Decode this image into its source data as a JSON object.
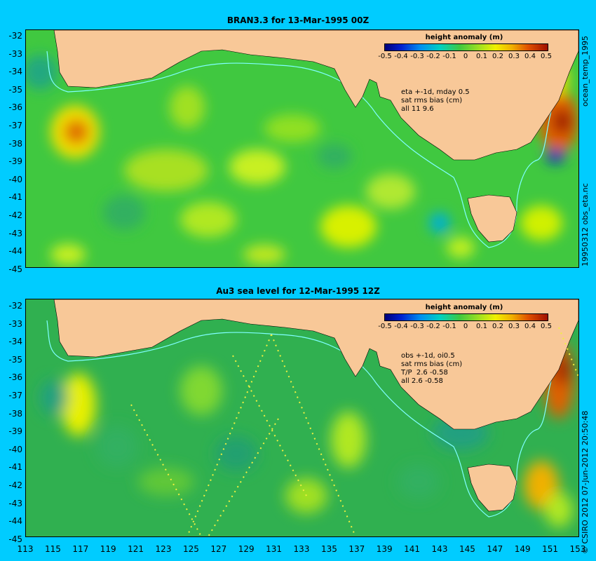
{
  "panels": [
    {
      "title": "BRAN3.3 for 13-Mar-1995 00Z",
      "colorbar_title": "height anomaly (m)",
      "notes": [
        "eta +-1d, mday 0.5",
        "sat rms bias (cm)",
        "all 11 9.6"
      ],
      "side_label": "ocean_temp_1995",
      "side_label_lower": "19950312 obs_eta.nc"
    },
    {
      "title": "Au3 sea level  for 12-Mar-1995 12Z",
      "colorbar_title": "height anomaly (m)",
      "notes": [
        "obs +-1d, oi0.5",
        "sat rms bias (cm)",
        "T/P  2.6 -0.58",
        "all 2.6 -0.58"
      ],
      "side_label": "© CSIRO 2012  07-Jun-2012 20:50:48"
    }
  ],
  "colorbar_ticks": [
    "-0.5",
    "-0.4",
    "-0.3",
    "-0.2",
    "-0.1",
    "0",
    "0.1",
    "0.2",
    "0.3",
    "0.4",
    "0.5"
  ],
  "colorbar_range": [
    -0.5,
    0.5
  ],
  "lat_labels": [
    "-32",
    "-33",
    "-34",
    "-35",
    "-36",
    "-37",
    "-38",
    "-39",
    "-40",
    "-41",
    "-42",
    "-43",
    "-44",
    "-45"
  ],
  "lon_labels": [
    "113",
    "115",
    "117",
    "119",
    "121",
    "123",
    "125",
    "127",
    "129",
    "131",
    "133",
    "135",
    "137",
    "139",
    "141",
    "143",
    "145",
    "147",
    "149",
    "151",
    "153"
  ],
  "map_extent": {
    "lon": [
      113,
      153
    ],
    "lat": [
      -45,
      -31.6
    ]
  },
  "colors": {
    "background": "#00ccff",
    "land": "#f8c898",
    "ocean_base": "#44cc44",
    "shelf_contour": "#7fffff"
  }
}
